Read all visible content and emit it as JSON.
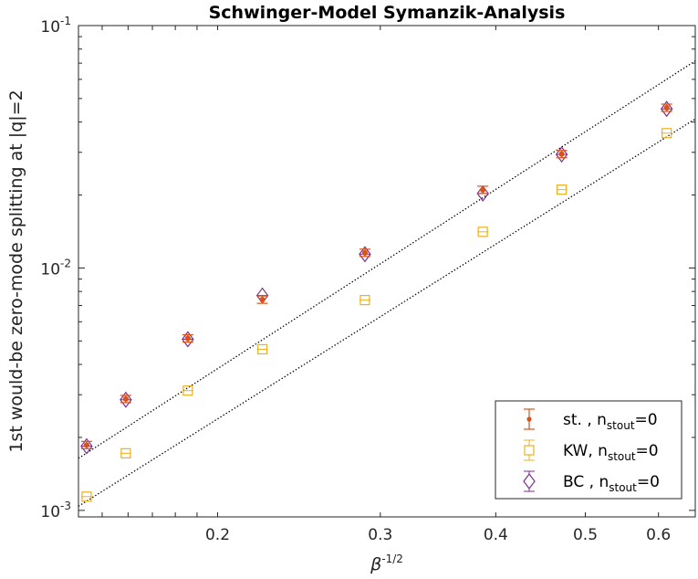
{
  "chart_data": {
    "type": "scatter",
    "title": "Schwinger-Model Symanzik-Analysis",
    "xlabel": {
      "base": "β",
      "exponent": "-1/2"
    },
    "ylabel": "1st would-be zero-mode splitting at |q|=2",
    "x_scale": "log",
    "y_scale": "log",
    "xlim": [
      0.1414,
      0.6576
    ],
    "ylim": [
      0.00094,
      0.1
    ],
    "x_ticks": [
      {
        "value": 0.2,
        "label": "0.2"
      },
      {
        "value": 0.3,
        "label": "0.3"
      },
      {
        "value": 0.4,
        "label": "0.4"
      },
      {
        "value": 0.5,
        "label": "0.5"
      },
      {
        "value": 0.6,
        "label": "0.6"
      }
    ],
    "y_ticks": [
      {
        "value": 0.001,
        "base": "10",
        "exponent": "-3"
      },
      {
        "value": 0.01,
        "base": "10",
        "exponent": "-2"
      },
      {
        "value": 0.1,
        "base": "10",
        "exponent": "-1"
      }
    ],
    "grid": false,
    "legend_position": "bottom-right",
    "x": [
      0.1443,
      0.1591,
      0.1857,
      0.2236,
      0.2887,
      0.3873,
      0.4714,
      0.6124
    ],
    "series": [
      {
        "name": "st. , n_stout=0",
        "legend": {
          "main": "st. , n",
          "sub": "stout",
          "tail": "=0"
        },
        "marker": "dot",
        "color": "#d95319",
        "values": [
          0.00186,
          0.00288,
          0.00512,
          0.0074,
          0.01155,
          0.021,
          0.0295,
          0.0458
        ]
      },
      {
        "name": "KW, n_stout=0",
        "legend": {
          "main": "KW, n",
          "sub": "stout",
          "tail": "=0"
        },
        "marker": "square",
        "color": "#edb120",
        "values": [
          0.00114,
          0.00172,
          0.00312,
          0.00462,
          0.00737,
          0.0141,
          0.02105,
          0.036
        ]
      },
      {
        "name": "BC , n_stout=0",
        "legend": {
          "main": "BC , n",
          "sub": "stout",
          "tail": "=0"
        },
        "marker": "diamond",
        "color": "#7e2f8e",
        "values": [
          0.00184,
          0.00286,
          0.00508,
          0.0077,
          0.0114,
          0.0203,
          0.0294,
          0.0453
        ]
      }
    ],
    "fit_lines": [
      {
        "color": "#000000",
        "style": "dotted",
        "points": [
          [
            0.1414,
            0.00164
          ],
          [
            0.6576,
            0.0715
          ]
        ]
      },
      {
        "color": "#000000",
        "style": "dotted",
        "points": [
          [
            0.1414,
            0.00104
          ],
          [
            0.6576,
            0.0412
          ]
        ]
      }
    ]
  }
}
